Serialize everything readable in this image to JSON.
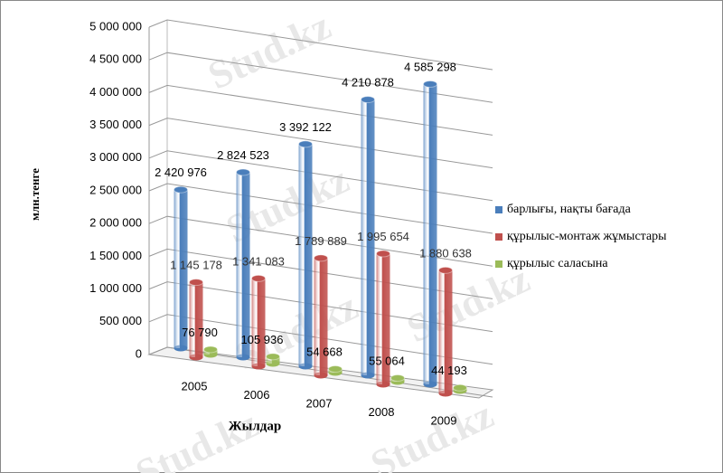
{
  "chart_data": {
    "type": "bar3d",
    "x_label": "Жылдар",
    "y_label": "млн.тенге",
    "watermark": "Stud.kz",
    "categories": [
      "2005",
      "2006",
      "2007",
      "2008",
      "2009"
    ],
    "series": [
      {
        "name": "барлығы, нақты бағада",
        "color": "#4a7ebb",
        "values": [
          2420976,
          2824523,
          3392122,
          4210878,
          4585298
        ],
        "value_labels": [
          "2 420 976",
          "2 824 523",
          "3 392 122",
          "4 210 878",
          "4 585 298"
        ]
      },
      {
        "name": "құрылыс-монтаж жұмыстары",
        "color": "#c0504d",
        "values": [
          1145178,
          1341083,
          1789889,
          1995654,
          1880638
        ],
        "value_labels": [
          "1 145 178",
          "1 341 083",
          "1 789 889",
          "1 995 654",
          "1 880 638"
        ]
      },
      {
        "name": "құрылыс  саласына",
        "color": "#9bbb59",
        "values": [
          76790,
          105936,
          54668,
          55064,
          44193
        ],
        "value_labels": [
          "76 790",
          "105 936",
          "54 668",
          "55 064",
          "44 193"
        ]
      }
    ],
    "ylim": [
      0,
      5000000
    ],
    "yticks": [
      0,
      {
        "value": 500000,
        "label": "500 000"
      },
      {
        "value": 1000000,
        "label": "1 000 000"
      },
      {
        "value": 1500000,
        "label": "1 500 000"
      },
      {
        "value": 2000000,
        "label": "2 000 000"
      },
      {
        "value": 2500000,
        "label": "2 500 000"
      },
      {
        "value": 3000000,
        "label": "3 000 000"
      },
      {
        "value": 3500000,
        "label": "3 500 000"
      },
      {
        "value": 4000000,
        "label": "4 000 000"
      },
      {
        "value": 4500000,
        "label": "4 500 000"
      },
      {
        "value": 5000000,
        "label": "5 000 000"
      }
    ],
    "grid": true,
    "legend": "right"
  }
}
